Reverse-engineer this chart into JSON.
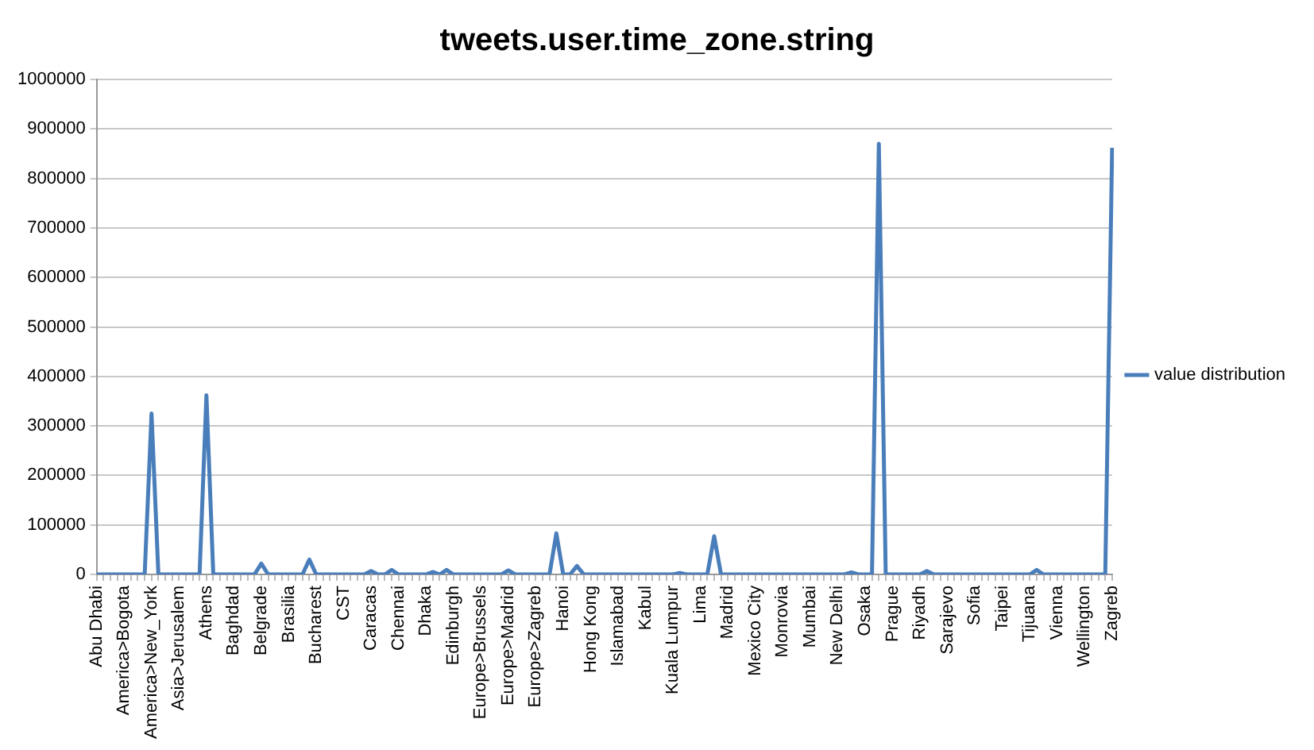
{
  "chart_data": {
    "type": "line",
    "title": "tweets.user.time_zone.string",
    "categories": [
      "Abu Dhabi",
      null,
      null,
      null,
      "America>Bogota",
      null,
      null,
      null,
      "America>New_York",
      null,
      null,
      null,
      "Asia>Jerusalem",
      null,
      null,
      null,
      "Athens",
      null,
      null,
      null,
      "Baghdad",
      null,
      null,
      null,
      "Belgrade",
      null,
      null,
      null,
      "Brasilia",
      null,
      null,
      null,
      "Bucharest",
      null,
      null,
      null,
      "CST",
      null,
      null,
      null,
      "Caracas",
      null,
      null,
      null,
      "Chennai",
      null,
      null,
      null,
      "Dhaka",
      null,
      null,
      null,
      "Edinburgh",
      null,
      null,
      null,
      "Europe>Brussels",
      null,
      null,
      null,
      "Europe>Madrid",
      null,
      null,
      null,
      "Europe>Zagreb",
      null,
      null,
      null,
      "Hanoi",
      null,
      null,
      null,
      "Hong Kong",
      null,
      null,
      null,
      "Islamabad",
      null,
      null,
      null,
      "Kabul",
      null,
      null,
      null,
      "Kuala Lumpur",
      null,
      null,
      null,
      "Lima",
      null,
      null,
      null,
      "Madrid",
      null,
      null,
      null,
      "Mexico City",
      null,
      null,
      null,
      "Monrovia",
      null,
      null,
      null,
      "Mumbai",
      null,
      null,
      null,
      "New Delhi",
      null,
      null,
      null,
      "Osaka",
      null,
      null,
      null,
      "Prague",
      null,
      null,
      null,
      "Riyadh",
      null,
      null,
      null,
      "Sarajevo",
      null,
      null,
      null,
      "Sofia",
      null,
      null,
      null,
      "Taipei",
      null,
      null,
      null,
      "Tijuana",
      null,
      null,
      null,
      "Vienna",
      null,
      null,
      null,
      "Wellington",
      null,
      null,
      null,
      "Zagreb"
    ],
    "series": [
      {
        "name": "value distribution",
        "color": "#4a7ebb",
        "values": [
          0,
          0,
          0,
          0,
          0,
          0,
          0,
          0,
          325000,
          0,
          0,
          0,
          0,
          0,
          0,
          0,
          362000,
          0,
          0,
          0,
          0,
          0,
          0,
          0,
          22000,
          0,
          0,
          0,
          0,
          0,
          0,
          30000,
          0,
          0,
          0,
          0,
          0,
          0,
          0,
          0,
          7000,
          0,
          0,
          9000,
          0,
          0,
          0,
          0,
          0,
          5000,
          0,
          9000,
          0,
          0,
          0,
          0,
          0,
          0,
          0,
          0,
          8000,
          0,
          0,
          0,
          0,
          0,
          0,
          83000,
          0,
          0,
          17000,
          0,
          0,
          0,
          0,
          0,
          0,
          0,
          0,
          0,
          0,
          0,
          0,
          0,
          0,
          3000,
          0,
          0,
          0,
          0,
          77000,
          0,
          0,
          0,
          0,
          0,
          0,
          0,
          0,
          0,
          0,
          0,
          0,
          0,
          0,
          0,
          0,
          0,
          0,
          0,
          4000,
          0,
          0,
          0,
          870000,
          0,
          0,
          0,
          0,
          0,
          0,
          7000,
          0,
          0,
          0,
          0,
          0,
          0,
          0,
          0,
          0,
          0,
          0,
          0,
          0,
          0,
          0,
          9000,
          0,
          0,
          0,
          0,
          0,
          0,
          0,
          0,
          0,
          0,
          862000
        ]
      }
    ],
    "ylim": [
      0,
      1000000
    ],
    "yticks": [
      0,
      100000,
      200000,
      300000,
      400000,
      500000,
      600000,
      700000,
      800000,
      900000,
      1000000
    ],
    "grid": "y",
    "legend": "right",
    "marker": "none",
    "line_style": "solid"
  }
}
